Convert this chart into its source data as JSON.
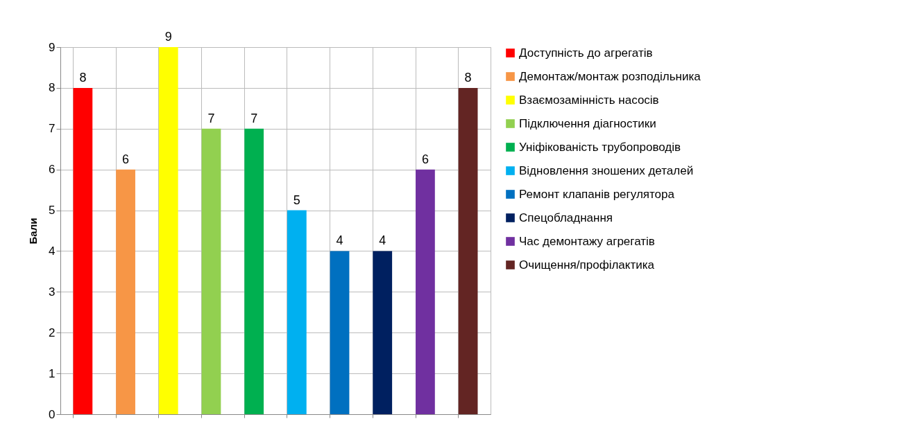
{
  "chart_data": {
    "type": "bar",
    "ylabel": "Бали",
    "categories": [
      null,
      null,
      null,
      null,
      null,
      null,
      null,
      null,
      null,
      null
    ],
    "series": [
      {
        "name": "Доступність до агрегатів",
        "color": "#ff0000",
        "values": [
          8,
          null,
          null,
          null,
          null,
          null,
          null,
          null,
          null,
          null
        ]
      },
      {
        "name": "Демонтаж/монтаж розподільника",
        "color": "#f79646",
        "values": [
          null,
          6,
          null,
          null,
          null,
          null,
          null,
          null,
          null,
          null
        ]
      },
      {
        "name": "Взаємозамінність насосів",
        "color": "#ffff00",
        "values": [
          null,
          null,
          9,
          null,
          null,
          null,
          null,
          null,
          null,
          null
        ]
      },
      {
        "name": "Підключення діагностики",
        "color": "#92d050",
        "values": [
          null,
          null,
          null,
          7,
          null,
          null,
          null,
          null,
          null,
          null
        ]
      },
      {
        "name": "Уніфікованість трубопроводів",
        "color": "#00b050",
        "values": [
          null,
          null,
          null,
          null,
          7,
          null,
          null,
          null,
          null,
          null
        ]
      },
      {
        "name": "Відновлення зношених деталей",
        "color": "#00b0f0",
        "values": [
          null,
          null,
          null,
          null,
          null,
          5,
          null,
          null,
          null,
          null
        ]
      },
      {
        "name": "Ремонт клапанів регулятора",
        "color": "#0070c0",
        "values": [
          null,
          null,
          null,
          null,
          null,
          null,
          4,
          null,
          null,
          null
        ]
      },
      {
        "name": "Спецобладнання",
        "color": "#002060",
        "values": [
          null,
          null,
          null,
          null,
          null,
          null,
          null,
          4,
          null,
          null
        ]
      },
      {
        "name": "Час демонтажу агрегатів",
        "color": "#7030a0",
        "values": [
          null,
          null,
          null,
          null,
          null,
          null,
          null,
          null,
          6,
          null
        ]
      },
      {
        "name": "Очищення/профілактика",
        "color": "#632523",
        "values": [
          null,
          null,
          null,
          null,
          null,
          null,
          null,
          null,
          null,
          8
        ]
      }
    ],
    "ylim": [
      0,
      9
    ],
    "yticks": [
      0,
      1,
      2,
      3,
      4,
      5,
      6,
      7,
      8,
      9
    ],
    "grid": true,
    "legend": "right",
    "data_labels": true
  }
}
